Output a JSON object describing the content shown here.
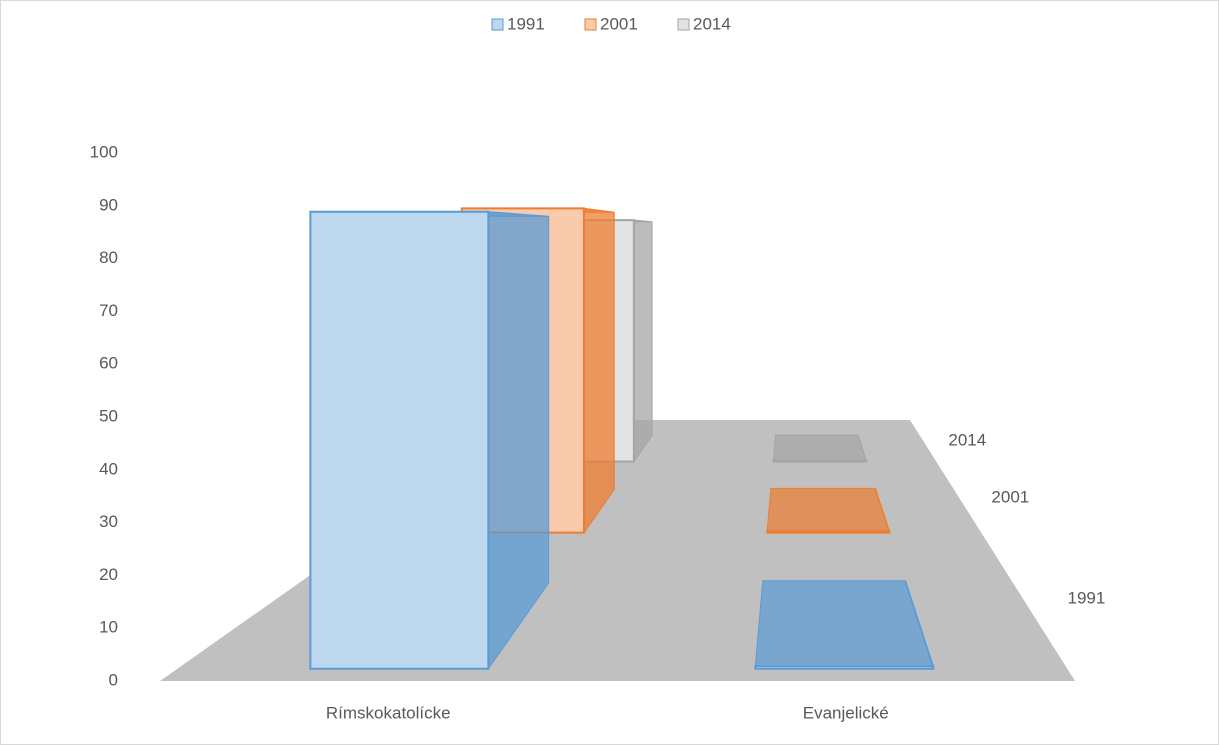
{
  "chart_data": {
    "type": "bar3d",
    "categories": [
      "Rímskokatolícke",
      "Evanjelické"
    ],
    "series": [
      {
        "name": "1991",
        "color": "#bdd7ee",
        "edge": "#5b9bd5",
        "values": [
          89,
          0.5
        ]
      },
      {
        "name": "2001",
        "color": "#f8cbad",
        "edge": "#ed7d31",
        "values": [
          92,
          0.4
        ]
      },
      {
        "name": "2014",
        "color": "#e3e3e3",
        "edge": "#a5a5a5",
        "values": [
          90,
          0.3
        ]
      }
    ],
    "ylim": [
      0,
      100
    ],
    "yticks": [
      0,
      10,
      20,
      30,
      40,
      50,
      60,
      70,
      80,
      90,
      100
    ]
  }
}
